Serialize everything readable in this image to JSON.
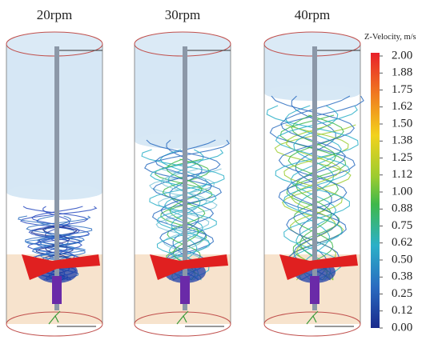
{
  "panels": [
    {
      "label": "20rpm"
    },
    {
      "label": "30rpm"
    },
    {
      "label": "40rpm"
    }
  ],
  "legend": {
    "title": "Z-Velocity, m/s",
    "labels": [
      "2.00",
      "1.88",
      "1.75",
      "1.62",
      "1.50",
      "1.38",
      "1.25",
      "1.12",
      "1.00",
      "0.88",
      "0.75",
      "0.62",
      "0.50",
      "0.38",
      "0.25",
      "0.12",
      "0.00"
    ]
  }
}
